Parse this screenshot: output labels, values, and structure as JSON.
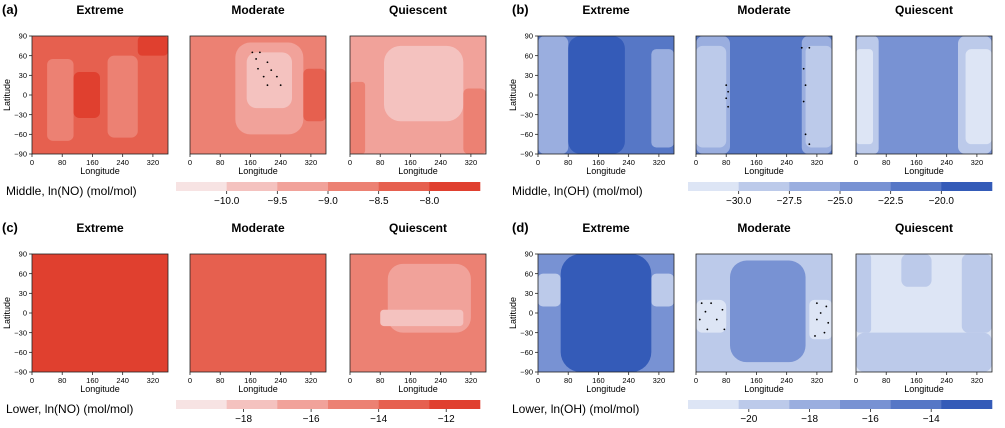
{
  "chart_data": [
    {
      "type": "heatmap",
      "label": "(a)",
      "species": "NO",
      "layer": "Middle",
      "colorbar_label": "Middle, ln(NO) (mol/mol)",
      "colorbar_ticks": [
        -10.0,
        -9.5,
        -9.0,
        -8.5,
        -8.0
      ],
      "colorbar_tick_labels": [
        "−10.0",
        "−9.5",
        "−9.0",
        "−8.5",
        "−8.0"
      ],
      "colorbar_range": [
        -10.5,
        -7.5
      ],
      "colors": [
        "#f7e3e3",
        "#f4c2bf",
        "#f1a29a",
        "#ec8173",
        "#e6604f",
        "#e0402f"
      ],
      "xlabel": "Longitude",
      "ylabel": "Latitude",
      "xticks": [
        0,
        80,
        160,
        240,
        320
      ],
      "yticks": [
        -90,
        -60,
        -30,
        0,
        30,
        60,
        90
      ],
      "xlim": [
        0,
        360
      ],
      "ylim": [
        -90,
        90
      ],
      "panels": [
        {
          "title": "Extreme",
          "background_level": -8.5,
          "regions": [
            {
              "level": -9.0,
              "lon": [
                40,
                110
              ],
              "lat": [
                -70,
                55
              ]
            },
            {
              "level": -8.0,
              "lon": [
                110,
                180
              ],
              "lat": [
                -35,
                35
              ]
            },
            {
              "level": -9.0,
              "lon": [
                200,
                280
              ],
              "lat": [
                -65,
                60
              ]
            },
            {
              "level": -8.0,
              "lon": [
                280,
                360
              ],
              "lat": [
                60,
                90
              ]
            }
          ]
        },
        {
          "title": "Moderate",
          "background_level": -9.0,
          "regions": [
            {
              "level": -9.5,
              "lon": [
                120,
                300
              ],
              "lat": [
                -60,
                80
              ]
            },
            {
              "level": -10.0,
              "lon": [
                150,
                270
              ],
              "lat": [
                -20,
                65
              ]
            },
            {
              "level": -8.5,
              "lon": [
                300,
                360
              ],
              "lat": [
                -40,
                40
              ]
            }
          ],
          "markers": [
            [
              165,
              65
            ],
            [
              185,
              65
            ],
            [
              175,
              55
            ],
            [
              205,
              50
            ],
            [
              180,
              40
            ],
            [
              215,
              38
            ],
            [
              195,
              28
            ],
            [
              230,
              28
            ],
            [
              205,
              15
            ],
            [
              240,
              15
            ]
          ]
        },
        {
          "title": "Quiescent",
          "background_level": -9.5,
          "regions": [
            {
              "level": -10.0,
              "lon": [
                90,
                300
              ],
              "lat": [
                -40,
                75
              ]
            },
            {
              "level": -9.0,
              "lon": [
                0,
                40
              ],
              "lat": [
                -90,
                20
              ]
            },
            {
              "level": -9.0,
              "lon": [
                300,
                360
              ],
              "lat": [
                -90,
                10
              ]
            }
          ]
        }
      ]
    },
    {
      "type": "heatmap",
      "label": "(b)",
      "species": "OH",
      "layer": "Middle",
      "colorbar_label": "Middle, ln(OH) (mol/mol)",
      "colorbar_ticks": [
        -30.0,
        -27.5,
        -25.0,
        -22.5,
        -20.0
      ],
      "colorbar_tick_labels": [
        "−30.0",
        "−27.5",
        "−25.0",
        "−22.5",
        "−20.0"
      ],
      "colorbar_range": [
        -32.5,
        -17.5
      ],
      "colors": [
        "#dde5f5",
        "#bccaea",
        "#9aaedf",
        "#7892d3",
        "#5677c6",
        "#345bb8"
      ],
      "xlabel": "Longitude",
      "ylabel": "Latitude",
      "xticks": [
        0,
        80,
        160,
        240,
        320
      ],
      "yticks": [
        -90,
        -60,
        -30,
        0,
        30,
        60,
        90
      ],
      "xlim": [
        0,
        360
      ],
      "ylim": [
        -90,
        90
      ],
      "panels": [
        {
          "title": "Extreme",
          "background_level": -22.5,
          "regions": [
            {
              "level": -27.5,
              "lon": [
                0,
                80
              ],
              "lat": [
                -90,
                90
              ]
            },
            {
              "level": -20.0,
              "lon": [
                80,
                230
              ],
              "lat": [
                -90,
                90
              ]
            },
            {
              "level": -27.5,
              "lon": [
                300,
                360
              ],
              "lat": [
                -80,
                70
              ]
            }
          ]
        },
        {
          "title": "Moderate",
          "background_level": -22.5,
          "regions": [
            {
              "level": -27.5,
              "lon": [
                0,
                90
              ],
              "lat": [
                -90,
                90
              ]
            },
            {
              "level": -30.0,
              "lon": [
                0,
                80
              ],
              "lat": [
                -80,
                75
              ]
            },
            {
              "level": -27.5,
              "lon": [
                280,
                360
              ],
              "lat": [
                -90,
                90
              ]
            },
            {
              "level": -30.0,
              "lon": [
                290,
                360
              ],
              "lat": [
                -80,
                75
              ]
            }
          ],
          "markers": [
            [
              80,
              15
            ],
            [
              85,
              5
            ],
            [
              80,
              -5
            ],
            [
              85,
              -18
            ],
            [
              280,
              72
            ],
            [
              300,
              72
            ],
            [
              285,
              40
            ],
            [
              290,
              15
            ],
            [
              285,
              -10
            ],
            [
              290,
              -60
            ],
            [
              300,
              -75
            ]
          ]
        },
        {
          "title": "Quiescent",
          "background_level": -25.0,
          "regions": [
            {
              "level": -30.0,
              "lon": [
                0,
                60
              ],
              "lat": [
                -90,
                90
              ]
            },
            {
              "level": -32.5,
              "lon": [
                0,
                45
              ],
              "lat": [
                -75,
                70
              ]
            },
            {
              "level": -30.0,
              "lon": [
                270,
                360
              ],
              "lat": [
                -90,
                90
              ]
            },
            {
              "level": -32.5,
              "lon": [
                290,
                360
              ],
              "lat": [
                -75,
                70
              ]
            }
          ]
        }
      ]
    },
    {
      "type": "heatmap",
      "label": "(c)",
      "species": "NO",
      "layer": "Lower",
      "colorbar_label": "Lower, ln(NO) (mol/mol)",
      "colorbar_ticks": [
        -18,
        -16,
        -14,
        -12
      ],
      "colorbar_tick_labels": [
        "−18",
        "−16",
        "−14",
        "−12"
      ],
      "colorbar_range": [
        -20,
        -11
      ],
      "colors": [
        "#f7e3e3",
        "#f4c2bf",
        "#f1a29a",
        "#ec8173",
        "#e6604f",
        "#e0402f"
      ],
      "xlabel": "Longitude",
      "ylabel": "Latitude",
      "xticks": [
        0,
        80,
        160,
        240,
        320
      ],
      "yticks": [
        -90,
        -60,
        -30,
        0,
        30,
        60,
        90
      ],
      "xlim": [
        0,
        360
      ],
      "ylim": [
        -90,
        90
      ],
      "panels": [
        {
          "title": "Extreme",
          "background_level": -11.5,
          "regions": []
        },
        {
          "title": "Moderate",
          "background_level": -13.5,
          "regions": []
        },
        {
          "title": "Quiescent",
          "background_level": -14.5,
          "regions": [
            {
              "level": -16.0,
              "lon": [
                100,
                320
              ],
              "lat": [
                -30,
                75
              ]
            },
            {
              "level": -18.0,
              "lon": [
                80,
                300
              ],
              "lat": [
                -20,
                5
              ]
            }
          ]
        }
      ]
    },
    {
      "type": "heatmap",
      "label": "(d)",
      "species": "OH",
      "layer": "Lower",
      "colorbar_label": "Lower, ln(OH) (mol/mol)",
      "colorbar_ticks": [
        -20,
        -18,
        -16,
        -14
      ],
      "colorbar_tick_labels": [
        "−20",
        "−18",
        "−16",
        "−14"
      ],
      "colorbar_range": [
        -22,
        -12
      ],
      "colors": [
        "#dde5f5",
        "#bccaea",
        "#9aaedf",
        "#7892d3",
        "#5677c6",
        "#345bb8"
      ],
      "xlabel": "Longitude",
      "ylabel": "Latitude",
      "xticks": [
        0,
        80,
        160,
        240,
        320
      ],
      "yticks": [
        -90,
        -60,
        -30,
        0,
        30,
        60,
        90
      ],
      "xlim": [
        0,
        360
      ],
      "ylim": [
        -90,
        90
      ],
      "panels": [
        {
          "title": "Extreme",
          "background_level": -17.0,
          "regions": [
            {
              "level": -19.0,
              "lon": [
                0,
                60
              ],
              "lat": [
                10,
                60
              ]
            },
            {
              "level": -19.0,
              "lon": [
                300,
                360
              ],
              "lat": [
                10,
                60
              ]
            },
            {
              "level": -13.0,
              "lon": [
                60,
                300
              ],
              "lat": [
                -90,
                90
              ]
            }
          ]
        },
        {
          "title": "Moderate",
          "background_level": -19.0,
          "regions": [
            {
              "level": -17.0,
              "lon": [
                90,
                290
              ],
              "lat": [
                -75,
                80
              ]
            },
            {
              "level": -21.0,
              "lon": [
                0,
                80
              ],
              "lat": [
                -30,
                20
              ]
            },
            {
              "level": -21.0,
              "lon": [
                300,
                360
              ],
              "lat": [
                -40,
                20
              ]
            }
          ],
          "markers": [
            [
              15,
              15
            ],
            [
              40,
              15
            ],
            [
              70,
              5
            ],
            [
              25,
              2
            ],
            [
              10,
              -10
            ],
            [
              55,
              -10
            ],
            [
              30,
              -25
            ],
            [
              75,
              -25
            ],
            [
              320,
              15
            ],
            [
              345,
              10
            ],
            [
              330,
              0
            ],
            [
              320,
              -10
            ],
            [
              350,
              -15
            ],
            [
              315,
              -35
            ],
            [
              340,
              -30
            ]
          ]
        },
        {
          "title": "Quiescent",
          "background_level": -21.0,
          "regions": [
            {
              "level": -19.0,
              "lon": [
                0,
                360
              ],
              "lat": [
                -90,
                -30
              ]
            },
            {
              "level": -19.0,
              "lon": [
                0,
                40
              ],
              "lat": [
                -30,
                90
              ]
            },
            {
              "level": -19.0,
              "lon": [
                120,
                200
              ],
              "lat": [
                40,
                90
              ]
            },
            {
              "level": -19.0,
              "lon": [
                280,
                360
              ],
              "lat": [
                -30,
                90
              ]
            }
          ]
        }
      ]
    }
  ]
}
